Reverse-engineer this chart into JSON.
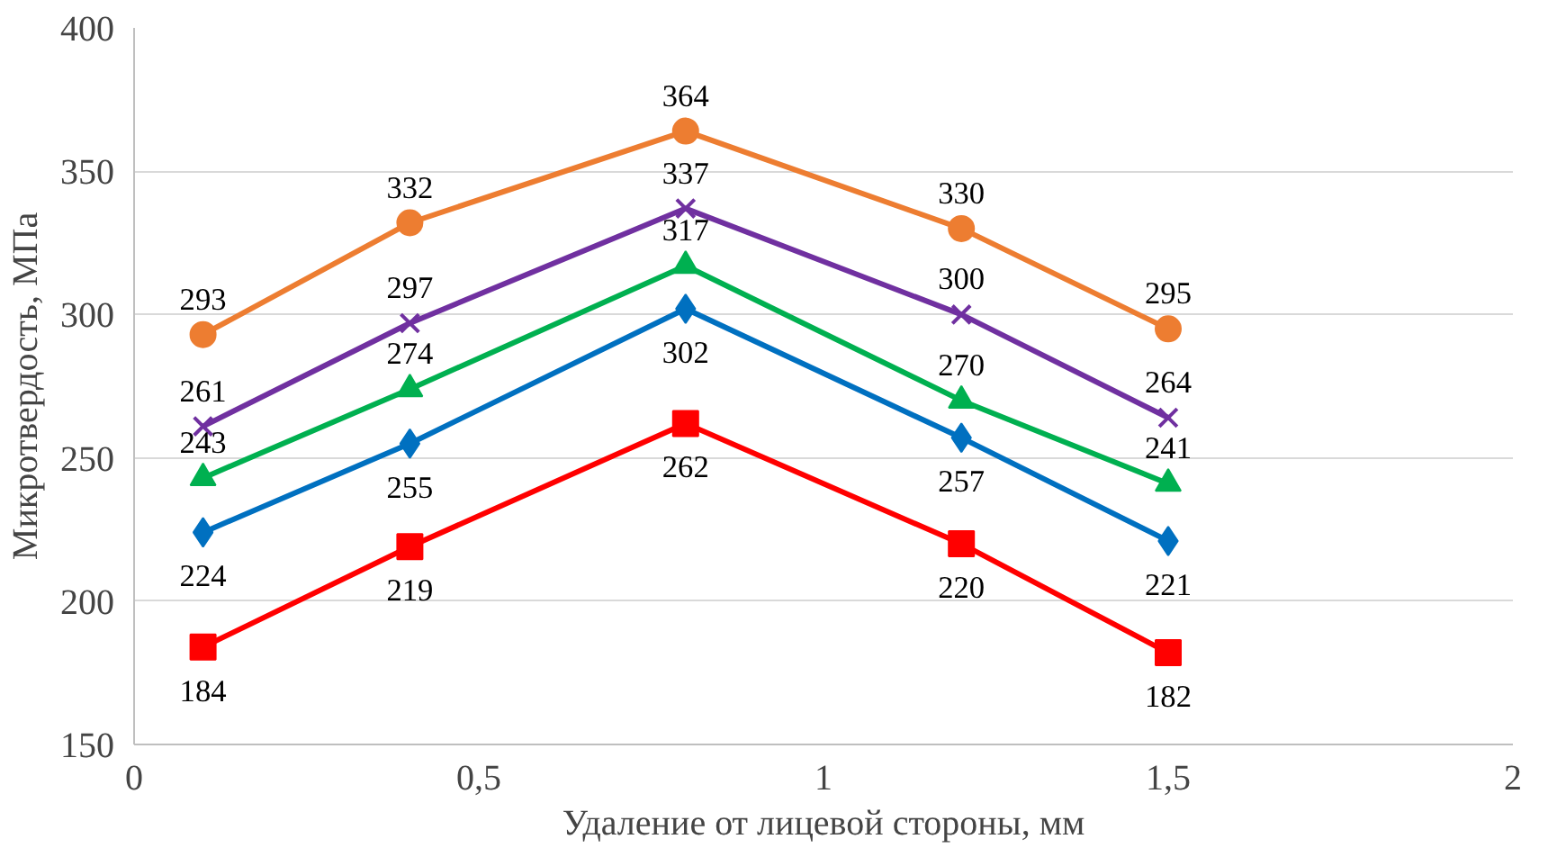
{
  "chart_data": {
    "type": "line",
    "xlabel": "Удаление от лицевой стороны, мм",
    "ylabel": "Микротвердость, МПа",
    "x": [
      0.1,
      0.4,
      0.8,
      1.2,
      1.5
    ],
    "xlim": [
      0,
      2
    ],
    "xticks": [
      0,
      {
        "value": 0.5,
        "label": "0,5"
      },
      1,
      {
        "value": 1.5,
        "label": "1,5"
      },
      2
    ],
    "ylim": [
      150,
      400
    ],
    "yticks": [
      150,
      200,
      250,
      300,
      350,
      400
    ],
    "grid": "y",
    "data_labels": true,
    "line_style": "solid",
    "series": [
      {
        "color": "#ed7d31",
        "marker": "circle",
        "values": [
          293,
          332,
          364,
          330,
          295
        ]
      },
      {
        "color": "#7030a0",
        "marker": "cross",
        "values": [
          261,
          297,
          337,
          300,
          264
        ]
      },
      {
        "color": "#00b050",
        "marker": "triangle",
        "values": [
          243,
          274,
          317,
          270,
          241
        ]
      },
      {
        "color": "#0070c0",
        "marker": "diamond",
        "values": [
          224,
          255,
          302,
          257,
          221
        ]
      },
      {
        "color": "#ff0000",
        "marker": "square",
        "values": [
          184,
          219,
          262,
          220,
          182
        ]
      }
    ]
  }
}
